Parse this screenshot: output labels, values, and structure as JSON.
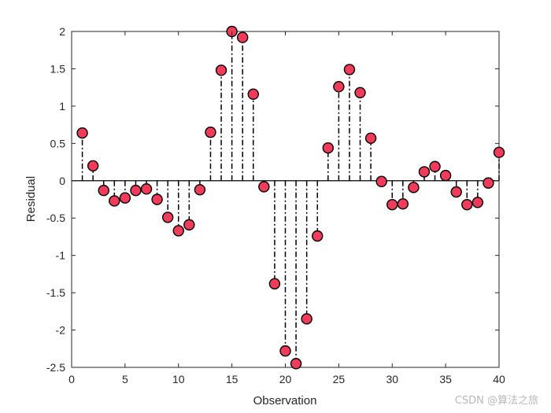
{
  "chart_data": {
    "type": "stem",
    "title": "",
    "xlabel": "Observation",
    "ylabel": "Residual",
    "xlim": [
      0,
      40
    ],
    "ylim": [
      -2.5,
      2
    ],
    "xticks": [
      0,
      5,
      10,
      15,
      20,
      25,
      30,
      35,
      40
    ],
    "yticks": [
      2,
      1.5,
      1,
      0.5,
      0,
      -0.5,
      -1,
      -1.5,
      -2,
      -2.5
    ],
    "marker_color": "#f03c5a",
    "stem_color": "#000000",
    "stem_style": "dash-dot",
    "series": [
      {
        "x": [
          1,
          2,
          3,
          4,
          5,
          6,
          7,
          8,
          9,
          10,
          11,
          12,
          13,
          14,
          15,
          16,
          17,
          18,
          19,
          20,
          21,
          22,
          23,
          24,
          25,
          26,
          27,
          28,
          29,
          30,
          31,
          32,
          33,
          34,
          35,
          36,
          37,
          38,
          39,
          40
        ],
        "values": [
          0.64,
          0.2,
          -0.13,
          -0.27,
          -0.23,
          -0.13,
          -0.11,
          -0.25,
          -0.49,
          -0.67,
          -0.59,
          -0.12,
          0.65,
          1.48,
          2.0,
          1.92,
          1.16,
          -0.08,
          -1.38,
          -2.28,
          -2.45,
          -1.85,
          -0.74,
          0.44,
          1.26,
          1.49,
          1.18,
          0.57,
          -0.01,
          -0.32,
          -0.31,
          -0.09,
          0.12,
          0.19,
          0.07,
          -0.15,
          -0.32,
          -0.29,
          -0.03,
          0.38
        ]
      }
    ]
  },
  "watermark": "CSDN @算法之旅"
}
